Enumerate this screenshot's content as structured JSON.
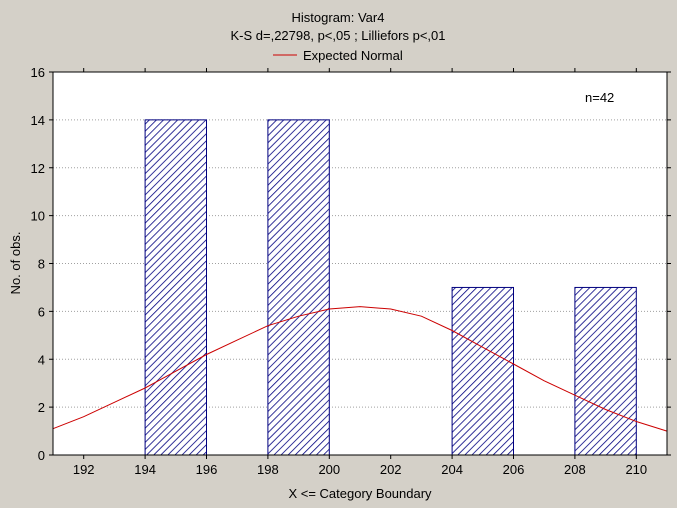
{
  "chart_data": {
    "type": "bar",
    "title": "Histogram: Var4",
    "subtitle": "K-S d=,22798, p<,05 ; Lilliefors p<,01",
    "xlabel": "X <= Category Boundary",
    "ylabel": "No. of obs.",
    "annotation": "n=42",
    "legend": {
      "label": "Expected Normal",
      "color": "#cc0000",
      "placement": "top-center"
    },
    "xlim": [
      191,
      211
    ],
    "ylim": [
      0,
      16
    ],
    "x_ticks": [
      "192",
      "194",
      "196",
      "198",
      "200",
      "202",
      "204",
      "206",
      "208",
      "210"
    ],
    "y_ticks": [
      "0",
      "2",
      "4",
      "6",
      "8",
      "10",
      "12",
      "14",
      "16"
    ],
    "grid": true,
    "bars": [
      {
        "x_from": 194,
        "x_to": 196,
        "value": 14
      },
      {
        "x_from": 198,
        "x_to": 200,
        "value": 14
      },
      {
        "x_from": 204,
        "x_to": 206,
        "value": 7
      },
      {
        "x_from": 208,
        "x_to": 210,
        "value": 7
      }
    ],
    "expected_normal": {
      "name": "Expected Normal",
      "x": [
        191,
        192,
        193,
        194,
        195,
        196,
        197,
        198,
        199,
        200,
        201,
        202,
        203,
        204,
        205,
        206,
        207,
        208,
        209,
        210,
        211
      ],
      "y": [
        1.1,
        1.6,
        2.2,
        2.8,
        3.5,
        4.2,
        4.8,
        5.4,
        5.8,
        6.1,
        6.2,
        6.1,
        5.8,
        5.2,
        4.5,
        3.8,
        3.1,
        2.5,
        1.9,
        1.4,
        1.0
      ]
    },
    "colors": {
      "background": "#d4d0c8",
      "plot_background": "#ffffff",
      "bar_stroke": "#00007f",
      "bar_hatch": "#00007f",
      "curve": "#cc0000",
      "grid": "#a0a0a0"
    }
  }
}
